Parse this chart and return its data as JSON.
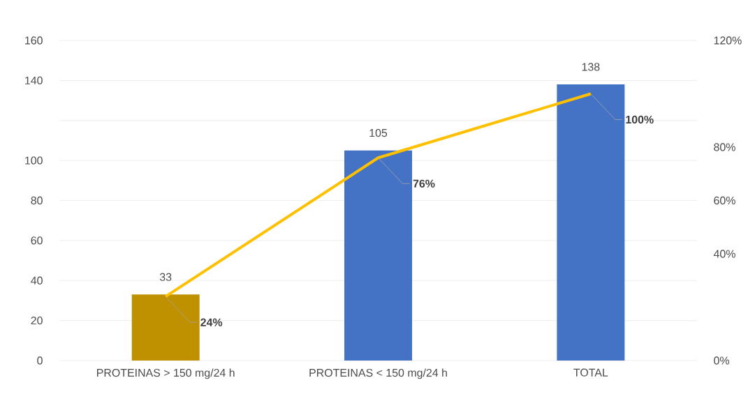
{
  "chart_data": {
    "type": "bar",
    "categories": [
      "PROTEINAS > 150 mg/24 h",
      "PROTEINAS < 150 mg/24 h",
      "TOTAL"
    ],
    "series": [
      {
        "values": [
          33,
          105,
          138
        ],
        "colors": [
          "#bf9000",
          "#4472c4",
          "#4472c4"
        ],
        "value_labels": [
          "33",
          "105",
          "138"
        ]
      },
      {
        "type": "line",
        "axis": "y2",
        "color": "#ffc000",
        "values": [
          24,
          76,
          100
        ],
        "value_labels": [
          "24%",
          "76%",
          "100%"
        ]
      }
    ],
    "ylim": [
      0,
      160
    ],
    "yticks": [
      0,
      20,
      40,
      60,
      80,
      100,
      {
        "value": 120,
        "label": null
      },
      140,
      160
    ],
    "y2lim": [
      0,
      120
    ],
    "y2ticks": [
      {
        "value": 0,
        "label": "0%"
      },
      {
        "value": 40,
        "label": "40%"
      },
      {
        "value": 60,
        "label": "60%"
      },
      {
        "value": 80,
        "label": "80%"
      },
      {
        "value": 120,
        "label": "120%"
      }
    ],
    "grid": "y"
  }
}
